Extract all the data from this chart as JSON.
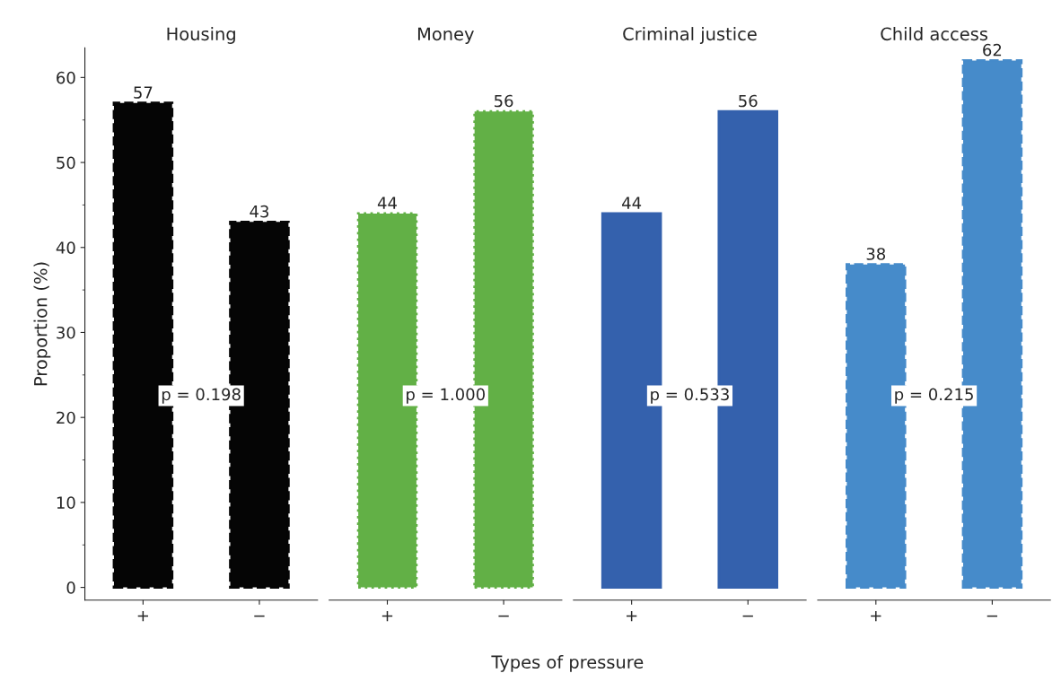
{
  "chart_data": [
    {
      "type": "bar",
      "title": "Housing",
      "ylabel": "Proportion (%)",
      "categories": [
        "+",
        "−"
      ],
      "values": [
        57,
        43
      ],
      "color": "#050505",
      "line_style": "dashed",
      "ylim": [
        -1.5,
        63.5
      ],
      "yticks": [
        0,
        10,
        20,
        30,
        40,
        50,
        60
      ],
      "data_labels": true,
      "annotations": [
        "p = 0.198"
      ]
    },
    {
      "type": "bar",
      "title": "Money",
      "xlabel": "Types of pressure",
      "categories": [
        "+",
        "−"
      ],
      "values": [
        44,
        56
      ],
      "color": "#62b046",
      "line_style": "dotted",
      "tick_labels": "x",
      "data_labels": true,
      "annotations": [
        "p = 1.000"
      ]
    },
    {
      "type": "bar",
      "title": "Criminal justice",
      "categories": [
        "+",
        "−"
      ],
      "values": [
        44,
        56
      ],
      "color": "#3461ad",
      "line_style": "solid",
      "tick_labels": "x",
      "data_labels": true,
      "annotations": [
        "p = 0.533"
      ]
    },
    {
      "type": "bar",
      "title": "Child access",
      "categories": [
        "+",
        "−"
      ],
      "values": [
        38,
        62
      ],
      "color": "#468bca",
      "line_style": "dashed",
      "tick_labels": "x",
      "data_labels": true,
      "annotations": [
        "p = 0.215"
      ]
    }
  ]
}
